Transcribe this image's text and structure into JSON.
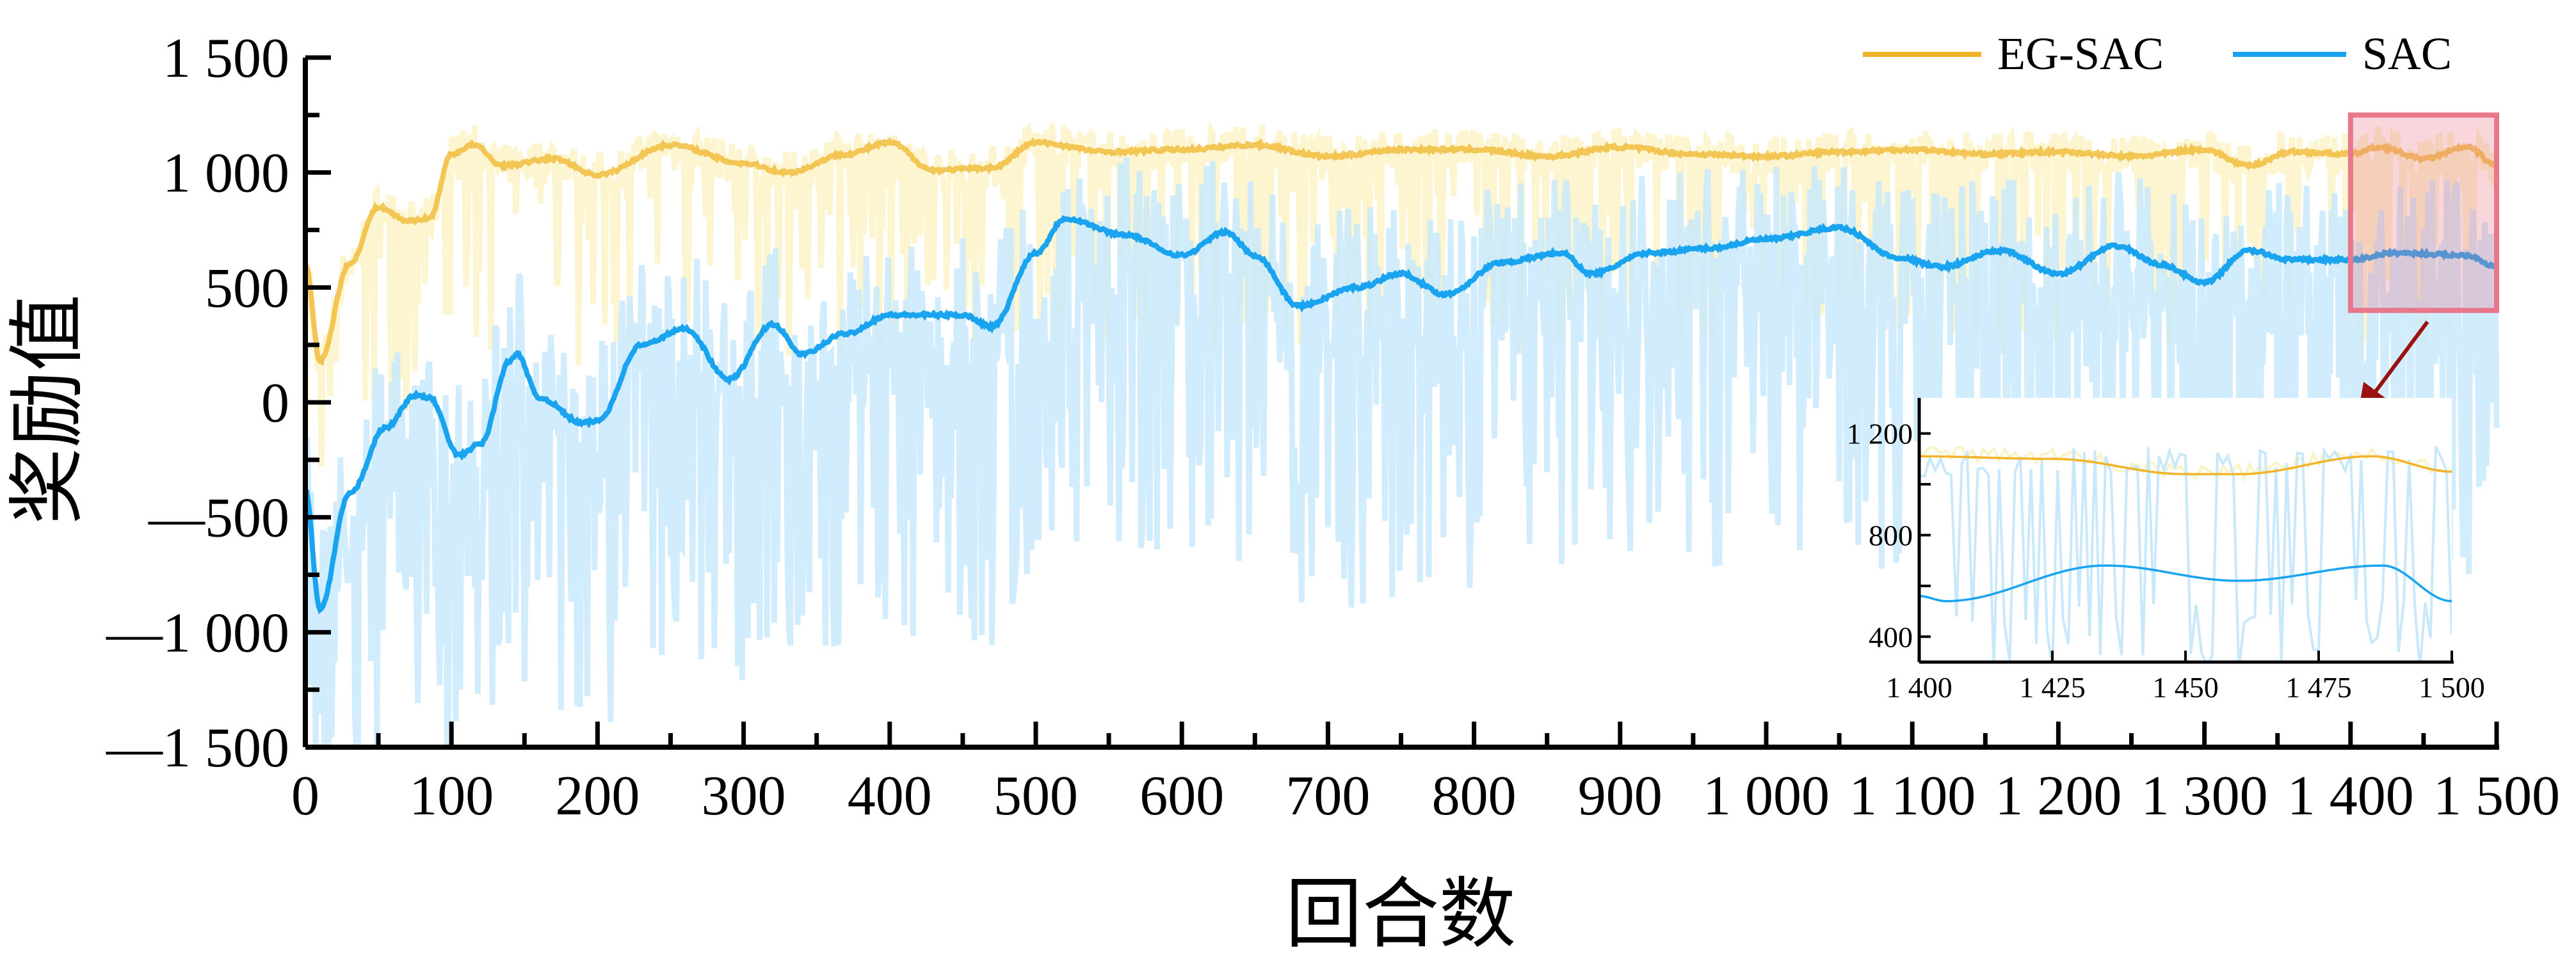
{
  "chart_data": {
    "type": "line",
    "title": "",
    "xlabel": "回合数",
    "ylabel": "奖励值",
    "xlim": [
      0,
      1500
    ],
    "ylim": [
      -1500,
      1500
    ],
    "xticks": [
      "0",
      "100",
      "200",
      "300",
      "400",
      "500",
      "600",
      "700",
      "800",
      "900",
      "1 000",
      "1 100",
      "1 200",
      "1 300",
      "1 400",
      "1 500"
    ],
    "yticks": [
      "—1 500",
      "—1 000",
      "—500",
      "0",
      "500",
      "1 000",
      "1 500"
    ],
    "legend_position": "top-right",
    "colors": {
      "EG-SAC": "#f0b429",
      "SAC": "#1aa3ee",
      "EG-SAC_raw": "#fbf3c8",
      "SAC_raw": "#c9e9fb",
      "highlight": "#e8778a",
      "arrow": "#9b1010"
    },
    "series": [
      {
        "name": "EG-SAC",
        "smoothed": [
          [
            0,
            600
          ],
          [
            10,
            180
          ],
          [
            30,
            600
          ],
          [
            50,
            850
          ],
          [
            70,
            790
          ],
          [
            85,
            800
          ],
          [
            100,
            1080
          ],
          [
            115,
            1120
          ],
          [
            135,
            1030
          ],
          [
            170,
            1060
          ],
          [
            200,
            990
          ],
          [
            250,
            1120
          ],
          [
            300,
            1040
          ],
          [
            330,
            1000
          ],
          [
            370,
            1080
          ],
          [
            400,
            1130
          ],
          [
            430,
            1010
          ],
          [
            470,
            1020
          ],
          [
            500,
            1130
          ],
          [
            550,
            1090
          ],
          [
            600,
            1100
          ],
          [
            650,
            1120
          ],
          [
            700,
            1070
          ],
          [
            750,
            1100
          ],
          [
            800,
            1100
          ],
          [
            850,
            1070
          ],
          [
            900,
            1110
          ],
          [
            950,
            1080
          ],
          [
            1000,
            1070
          ],
          [
            1050,
            1090
          ],
          [
            1100,
            1100
          ],
          [
            1150,
            1080
          ],
          [
            1200,
            1090
          ],
          [
            1250,
            1070
          ],
          [
            1300,
            1100
          ],
          [
            1330,
            1030
          ],
          [
            1360,
            1090
          ],
          [
            1400,
            1080
          ],
          [
            1420,
            1110
          ],
          [
            1450,
            1060
          ],
          [
            1480,
            1110
          ],
          [
            1500,
            1030
          ]
        ]
      },
      {
        "name": "SAC",
        "smoothed": [
          [
            0,
            -380
          ],
          [
            10,
            -900
          ],
          [
            30,
            -400
          ],
          [
            55,
            -110
          ],
          [
            75,
            30
          ],
          [
            85,
            20
          ],
          [
            105,
            -230
          ],
          [
            120,
            -180
          ],
          [
            140,
            180
          ],
          [
            145,
            210
          ],
          [
            160,
            20
          ],
          [
            190,
            -90
          ],
          [
            200,
            -80
          ],
          [
            230,
            250
          ],
          [
            260,
            320
          ],
          [
            290,
            100
          ],
          [
            320,
            340
          ],
          [
            340,
            210
          ],
          [
            370,
            300
          ],
          [
            400,
            380
          ],
          [
            450,
            380
          ],
          [
            470,
            330
          ],
          [
            500,
            650
          ],
          [
            520,
            800
          ],
          [
            560,
            730
          ],
          [
            600,
            640
          ],
          [
            630,
            740
          ],
          [
            650,
            640
          ],
          [
            680,
            420
          ],
          [
            720,
            500
          ],
          [
            750,
            560
          ],
          [
            780,
            470
          ],
          [
            820,
            610
          ],
          [
            860,
            650
          ],
          [
            880,
            560
          ],
          [
            920,
            650
          ],
          [
            960,
            670
          ],
          [
            1000,
            710
          ],
          [
            1050,
            760
          ],
          [
            1090,
            630
          ],
          [
            1120,
            590
          ],
          [
            1160,
            660
          ],
          [
            1200,
            560
          ],
          [
            1240,
            680
          ],
          [
            1270,
            600
          ],
          [
            1300,
            520
          ],
          [
            1330,
            660
          ],
          [
            1360,
            620
          ],
          [
            1400,
            620
          ],
          [
            1430,
            650
          ],
          [
            1480,
            640
          ],
          [
            1500,
            590
          ]
        ]
      }
    ],
    "inset": {
      "xlim": [
        1400,
        1500
      ],
      "ylim": [
        300,
        1340
      ],
      "xticks": [
        "1 400",
        "1 425",
        "1 450",
        "1 475",
        "1 500"
      ],
      "yticks": [
        "400",
        "800",
        "1 200"
      ],
      "series": [
        {
          "name": "EG-SAC",
          "smoothed": [
            [
              1400,
              1110
            ],
            [
              1425,
              1100
            ],
            [
              1450,
              1040
            ],
            [
              1460,
              1040
            ],
            [
              1485,
              1110
            ],
            [
              1500,
              1050
            ]
          ]
        },
        {
          "name": "SAC",
          "smoothed": [
            [
              1400,
              560
            ],
            [
              1405,
              540
            ],
            [
              1435,
              680
            ],
            [
              1460,
              620
            ],
            [
              1487,
              680
            ],
            [
              1500,
              540
            ]
          ]
        }
      ]
    },
    "highlight_region": {
      "x": [
        1400,
        1500
      ],
      "y": [
        400,
        1250
      ]
    }
  }
}
